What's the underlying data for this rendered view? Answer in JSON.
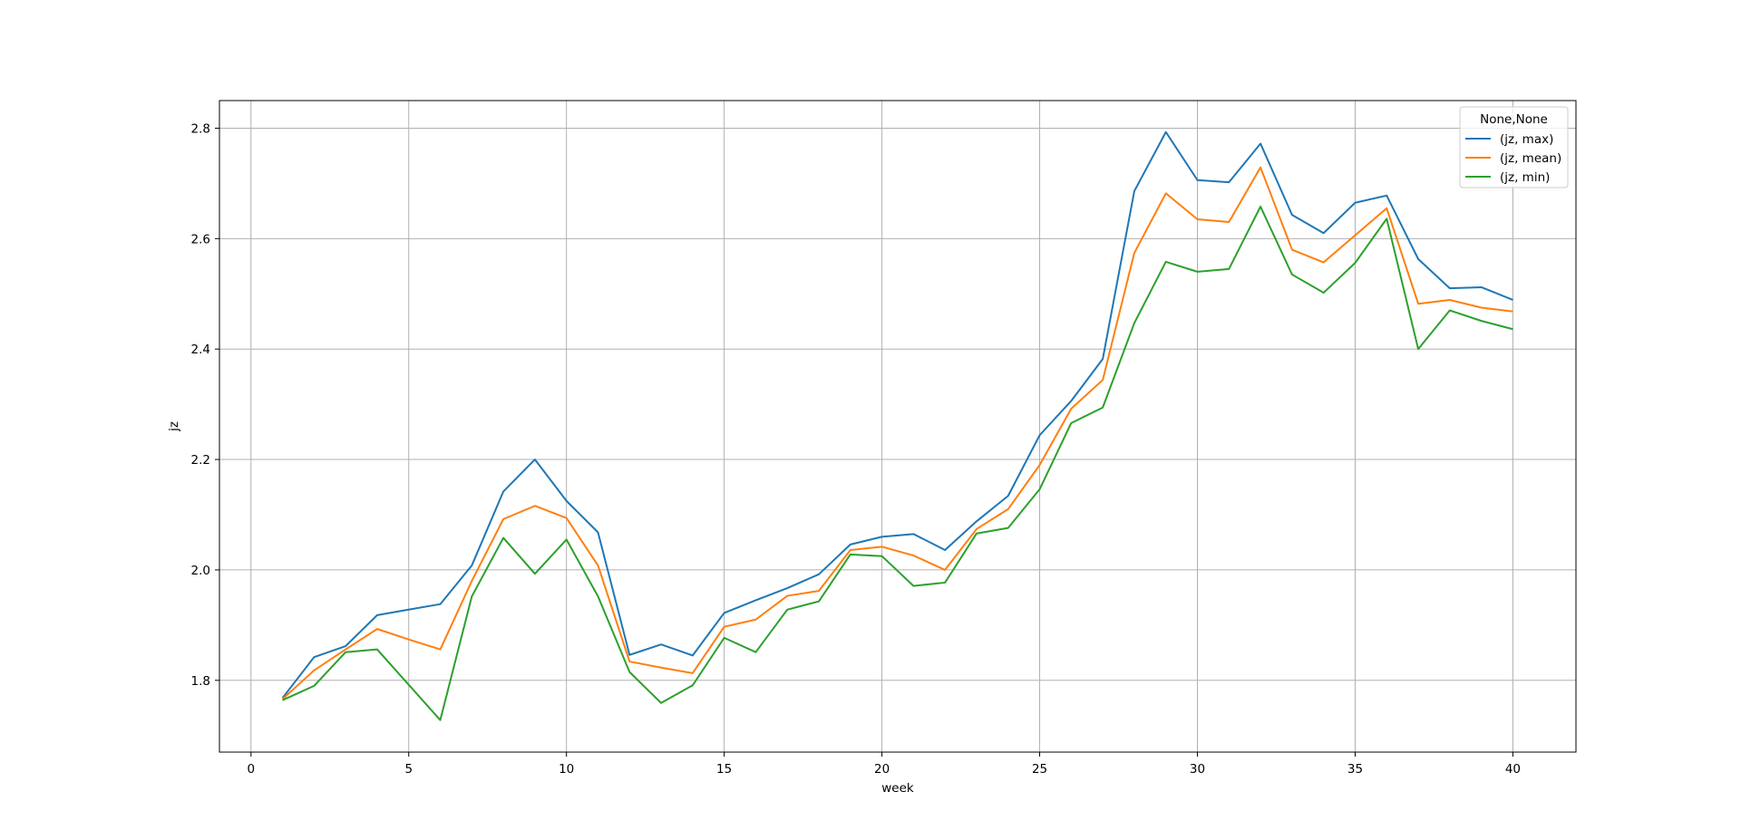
{
  "chart_data": {
    "type": "line",
    "xlabel": "week",
    "ylabel": "jz",
    "xlim": [
      -1,
      42
    ],
    "ylim": [
      1.67,
      2.85
    ],
    "xticks": [
      0,
      5,
      10,
      15,
      20,
      25,
      30,
      35,
      40
    ],
    "yticks": [
      1.8,
      2.0,
      2.2,
      2.4,
      2.6,
      2.8
    ],
    "ytick_labels": [
      "1.8",
      "2.0",
      "2.2",
      "2.4",
      "2.6",
      "2.8"
    ],
    "grid": true,
    "legend": {
      "title": "None,None",
      "placement": "top-right"
    },
    "x": [
      1,
      2,
      3,
      4,
      5,
      6,
      7,
      8,
      9,
      10,
      11,
      12,
      13,
      14,
      15,
      16,
      17,
      18,
      19,
      20,
      21,
      22,
      23,
      24,
      25,
      26,
      27,
      28,
      29,
      30,
      31,
      32,
      33,
      34,
      35,
      36,
      37,
      38,
      39,
      40
    ],
    "series": [
      {
        "name": "(jz, max)",
        "color": "#1f77b4",
        "values": [
          1.768,
          1.842,
          1.862,
          1.918,
          1.928,
          1.938,
          2.008,
          2.142,
          2.2,
          2.125,
          2.068,
          1.846,
          1.865,
          1.845,
          1.922,
          1.945,
          1.967,
          1.992,
          2.046,
          2.06,
          2.065,
          2.036,
          2.088,
          2.134,
          2.244,
          2.306,
          2.382,
          2.686,
          2.793,
          2.706,
          2.702,
          2.772,
          2.643,
          2.61,
          2.665,
          2.678,
          2.563,
          2.51,
          2.512,
          2.489
        ]
      },
      {
        "name": "(jz, mean)",
        "color": "#ff7f0e",
        "values": [
          1.766,
          1.818,
          1.856,
          1.893,
          1.874,
          1.856,
          1.98,
          2.092,
          2.116,
          2.094,
          2.008,
          1.834,
          1.823,
          1.813,
          1.897,
          1.91,
          1.953,
          1.962,
          2.036,
          2.042,
          2.026,
          2.0,
          2.074,
          2.11,
          2.19,
          2.292,
          2.344,
          2.574,
          2.682,
          2.635,
          2.63,
          2.729,
          2.58,
          2.557,
          2.606,
          2.655,
          2.482,
          2.489,
          2.475,
          2.468
        ]
      },
      {
        "name": "(jz, min)",
        "color": "#2ca02c",
        "values": [
          1.764,
          1.79,
          1.851,
          1.856,
          1.792,
          1.728,
          1.952,
          2.058,
          1.993,
          2.055,
          1.952,
          1.815,
          1.759,
          1.791,
          1.877,
          1.851,
          1.928,
          1.943,
          2.028,
          2.025,
          1.971,
          1.977,
          2.066,
          2.076,
          2.146,
          2.266,
          2.294,
          2.447,
          2.558,
          2.54,
          2.545,
          2.658,
          2.535,
          2.502,
          2.556,
          2.636,
          2.4,
          2.47,
          2.451,
          2.436
        ]
      }
    ]
  }
}
